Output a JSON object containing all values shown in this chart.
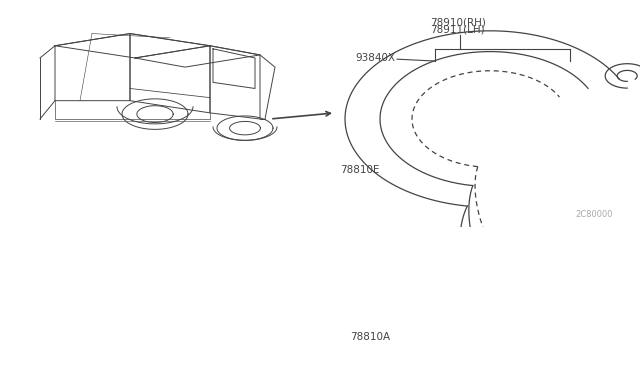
{
  "bg_color": "#ffffff",
  "line_color": "#444444",
  "text_color": "#444444",
  "labels": {
    "part1": "78910(RH)",
    "part2": "78911(LH)",
    "part3": "93840X",
    "part4": "78810E",
    "part5": "78810A",
    "watermark": "2C80000"
  }
}
